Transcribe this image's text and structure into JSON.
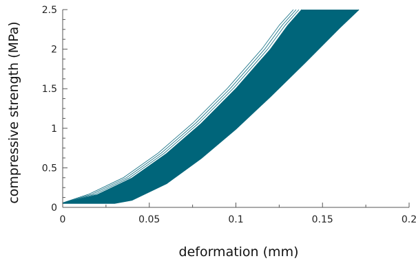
{
  "chart_data": {
    "type": "area",
    "title": "",
    "xlabel": "deformation (mm)",
    "ylabel": "compressive strength (MPa)",
    "xlim": [
      0,
      0.2
    ],
    "ylim": [
      0,
      2.5
    ],
    "xticks": [
      {
        "value": 0,
        "label": "0"
      },
      {
        "value": 0.05,
        "label": "0.05"
      },
      {
        "value": 0.1,
        "label": "0.1"
      },
      {
        "value": 0.15,
        "label": "0.15"
      },
      {
        "value": 0.2,
        "label": "0.2"
      }
    ],
    "yticks": [
      {
        "value": 0,
        "label": "0"
      },
      {
        "value": 0.5,
        "label": "0.5"
      },
      {
        "value": 1,
        "label": "1"
      },
      {
        "value": 1.5,
        "label": "1.5"
      },
      {
        "value": 2,
        "label": "2"
      },
      {
        "value": 2.5,
        "label": "2.5"
      }
    ],
    "grid": false,
    "legend": "none",
    "fill_color": "#00657a",
    "band": {
      "upper": {
        "x": [
          0,
          0.02,
          0.04,
          0.06,
          0.08,
          0.1,
          0.12,
          0.13,
          0.138
        ],
        "y": [
          0.05,
          0.16,
          0.37,
          0.68,
          1.06,
          1.5,
          2.0,
          2.3,
          2.5
        ]
      },
      "lower": {
        "x": [
          0,
          0.02,
          0.03,
          0.04,
          0.06,
          0.08,
          0.1,
          0.12,
          0.14,
          0.16,
          0.171
        ],
        "y": [
          0.05,
          0.05,
          0.05,
          0.09,
          0.3,
          0.62,
          0.99,
          1.4,
          1.83,
          2.27,
          2.5
        ]
      }
    }
  }
}
